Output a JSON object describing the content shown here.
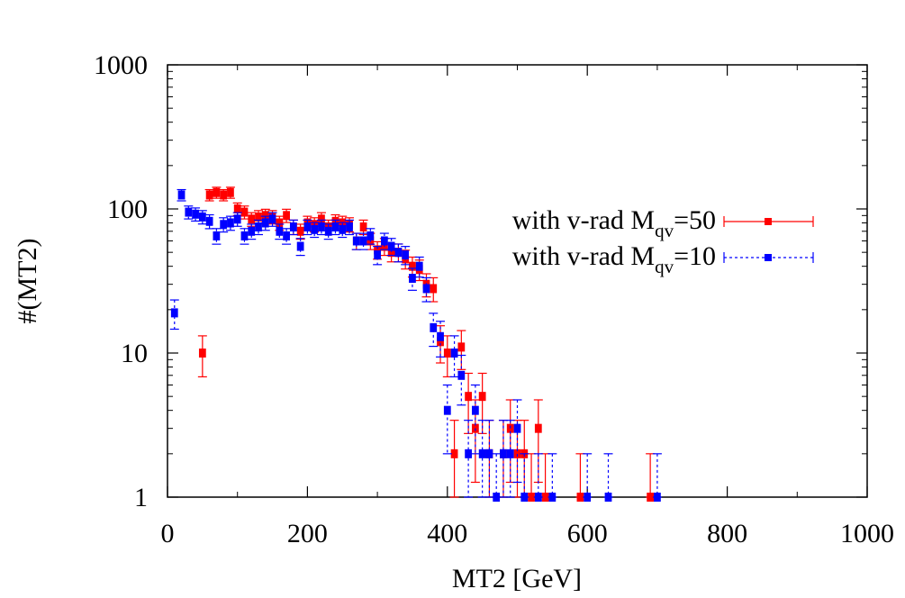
{
  "chart_data": {
    "type": "scatter",
    "xlabel": "MT2 [GeV]",
    "ylabel": "#(MT2)",
    "xlim": [
      0,
      1000
    ],
    "ylim": [
      1,
      1000
    ],
    "yscale": "log",
    "grid": false,
    "legend_position": "top-right",
    "x_ticks": [
      {
        "value": 0,
        "label": "0"
      },
      {
        "value": 200,
        "label": "200"
      },
      {
        "value": 400,
        "label": "400"
      },
      {
        "value": 600,
        "label": "600"
      },
      {
        "value": 800,
        "label": "800"
      },
      {
        "value": 1000,
        "label": "1000"
      }
    ],
    "y_ticks": [
      {
        "value": 1,
        "label": "1"
      },
      {
        "value": 10,
        "label": "10"
      },
      {
        "value": 100,
        "label": "100"
      },
      {
        "value": 1000,
        "label": "1000"
      }
    ],
    "series": [
      {
        "name": "with v-rad M_qv=50",
        "legend_prefix": "with v-rad M",
        "legend_sub": "qv",
        "legend_suffix": "=50",
        "color": "#ff0000",
        "line_style": "solid",
        "x": [
          50,
          60,
          70,
          80,
          90,
          100,
          110,
          120,
          130,
          140,
          150,
          160,
          170,
          180,
          190,
          200,
          210,
          220,
          230,
          240,
          250,
          260,
          270,
          280,
          290,
          300,
          310,
          320,
          330,
          340,
          350,
          360,
          370,
          380,
          390,
          400,
          410,
          420,
          430,
          440,
          450,
          460,
          480,
          490,
          500,
          510,
          520,
          530,
          540,
          590,
          690
        ],
        "y": [
          10,
          125,
          130,
          125,
          130,
          100,
          95,
          85,
          88,
          90,
          88,
          80,
          90,
          75,
          70,
          80,
          78,
          85,
          75,
          82,
          80,
          78,
          60,
          75,
          60,
          52,
          55,
          50,
          50,
          45,
          40,
          38,
          30,
          28,
          12,
          10,
          2,
          11,
          5,
          3,
          5,
          2,
          2,
          3,
          2,
          2,
          1,
          3,
          1,
          1,
          1
        ]
      },
      {
        "name": "with v-rad M_qv=10",
        "legend_prefix": "with v-rad M",
        "legend_sub": "qv",
        "legend_suffix": "=10",
        "color": "#0000ff",
        "line_style": "dashed",
        "x": [
          10,
          20,
          30,
          40,
          50,
          60,
          70,
          80,
          90,
          100,
          110,
          120,
          130,
          140,
          150,
          160,
          170,
          180,
          190,
          200,
          210,
          220,
          230,
          240,
          250,
          260,
          270,
          280,
          290,
          300,
          310,
          320,
          330,
          340,
          350,
          360,
          370,
          380,
          390,
          400,
          410,
          420,
          430,
          440,
          450,
          460,
          470,
          480,
          490,
          500,
          510,
          530,
          550,
          600,
          630,
          700
        ],
        "y": [
          19,
          125,
          95,
          92,
          88,
          82,
          65,
          78,
          80,
          85,
          65,
          70,
          75,
          80,
          85,
          70,
          65,
          75,
          55,
          75,
          72,
          75,
          70,
          75,
          72,
          75,
          60,
          60,
          65,
          48,
          60,
          55,
          50,
          48,
          33,
          40,
          28,
          15,
          13,
          4,
          10,
          7,
          2,
          4,
          2,
          2,
          1,
          2,
          2,
          3,
          1,
          1,
          1,
          1,
          1,
          1
        ]
      }
    ]
  }
}
